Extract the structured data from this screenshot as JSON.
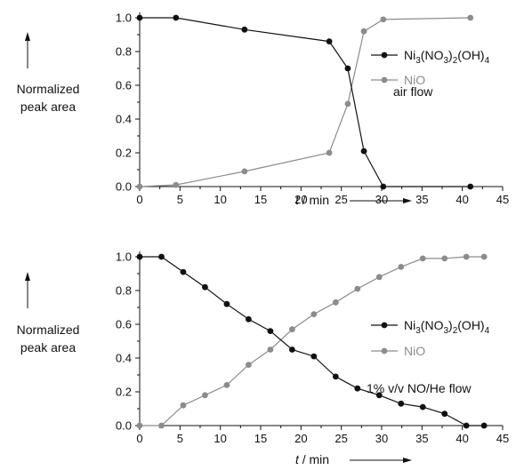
{
  "chart_data": [
    {
      "type": "line",
      "annotation": "air flow",
      "ylabel": [
        "Normalized",
        "peak area"
      ],
      "xlabel_italic": "t",
      "xlabel_rest": " / min",
      "xlim": [
        0,
        45
      ],
      "ylim": [
        0,
        1.0
      ],
      "xticks": [
        0,
        5,
        10,
        15,
        20,
        25,
        30,
        35,
        40,
        45
      ],
      "yticks": [
        "0.0",
        "0.2",
        "0.4",
        "0.6",
        "0.8",
        "1.0"
      ],
      "legend_position": "right",
      "series": [
        {
          "name": "Ni3(NO3)2(OH)4",
          "color": "#111111",
          "x": [
            0,
            4.5,
            13,
            23.5,
            25.8,
            27.8,
            30.2,
            41
          ],
          "y": [
            1.0,
            1.0,
            0.93,
            0.86,
            0.7,
            0.21,
            0.0,
            0.0
          ]
        },
        {
          "name": "NiO",
          "color": "#8c8c8c",
          "x": [
            0,
            4.5,
            13,
            23.5,
            25.8,
            27.8,
            30.2,
            41
          ],
          "y": [
            0.0,
            0.01,
            0.09,
            0.2,
            0.49,
            0.92,
            0.99,
            1.0
          ]
        }
      ]
    },
    {
      "type": "line",
      "annotation": "1% v/v NO/He flow",
      "ylabel": [
        "Normalized",
        "peak area"
      ],
      "xlabel_italic": "t",
      "xlabel_rest": " / min",
      "xlim": [
        0,
        45
      ],
      "ylim": [
        0,
        1.0
      ],
      "xticks": [
        0,
        5,
        10,
        15,
        20,
        25,
        30,
        35,
        40,
        45
      ],
      "yticks": [
        "0.0",
        "0.2",
        "0.4",
        "0.6",
        "0.8",
        "1.0"
      ],
      "legend_position": "right",
      "series": [
        {
          "name": "Ni3(NO3)2(OH)4",
          "color": "#111111",
          "x": [
            0,
            2.7,
            5.4,
            8.1,
            10.8,
            13.5,
            16.2,
            18.9,
            21.6,
            24.3,
            27,
            29.7,
            32.4,
            35.1,
            37.8,
            40.5,
            42.7
          ],
          "y": [
            1.0,
            1.0,
            0.91,
            0.82,
            0.72,
            0.63,
            0.56,
            0.45,
            0.41,
            0.29,
            0.22,
            0.18,
            0.13,
            0.11,
            0.07,
            0.0,
            0.0
          ]
        },
        {
          "name": "NiO",
          "color": "#8c8c8c",
          "x": [
            0,
            2.7,
            5.4,
            8.1,
            10.8,
            13.5,
            16.2,
            18.9,
            21.6,
            24.3,
            27,
            29.7,
            32.4,
            35.1,
            37.8,
            40.5,
            42.7
          ],
          "y": [
            0.0,
            0.0,
            0.12,
            0.18,
            0.24,
            0.36,
            0.45,
            0.57,
            0.66,
            0.73,
            0.81,
            0.88,
            0.94,
            0.99,
            0.99,
            1.0,
            1.0
          ]
        }
      ]
    }
  ]
}
